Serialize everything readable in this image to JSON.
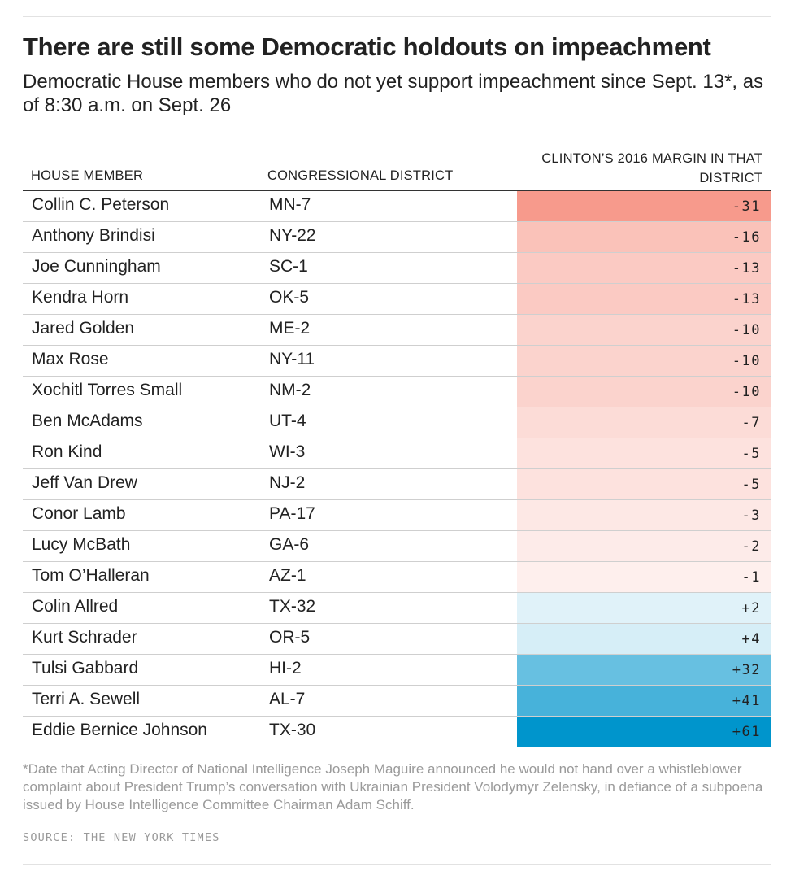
{
  "title": "There are still some Democratic holdouts on impeachment",
  "subtitle": "Democratic House members who do not yet support impeachment since Sept. 13*, as of 8:30 a.m. on Sept. 26",
  "columns": {
    "member": "HOUSE MEMBER",
    "district": "CONGRESSIONAL DISTRICT",
    "margin": "CLINTON’S 2016 MARGIN IN THAT DISTRICT"
  },
  "colors": {
    "negative": "#f79a8c",
    "positive": "#0095cc",
    "text": "#222222",
    "muted": "#9a9a9a"
  },
  "chart_data": {
    "type": "table",
    "title": "There are still some Democratic holdouts on impeachment",
    "rows": [
      {
        "member": "Collin C. Peterson",
        "district": "MN-7",
        "margin": -31,
        "label": "-31"
      },
      {
        "member": "Anthony Brindisi",
        "district": "NY-22",
        "margin": -16,
        "label": "-16"
      },
      {
        "member": "Joe Cunningham",
        "district": "SC-1",
        "margin": -13,
        "label": "-13"
      },
      {
        "member": "Kendra Horn",
        "district": "OK-5",
        "margin": -13,
        "label": "-13"
      },
      {
        "member": "Jared Golden",
        "district": "ME-2",
        "margin": -10,
        "label": "-10"
      },
      {
        "member": "Max Rose",
        "district": "NY-11",
        "margin": -10,
        "label": "-10"
      },
      {
        "member": "Xochitl Torres Small",
        "district": "NM-2",
        "margin": -10,
        "label": "-10"
      },
      {
        "member": "Ben McAdams",
        "district": "UT-4",
        "margin": -7,
        "label": "-7"
      },
      {
        "member": "Ron Kind",
        "district": "WI-3",
        "margin": -5,
        "label": "-5"
      },
      {
        "member": "Jeff Van Drew",
        "district": "NJ-2",
        "margin": -5,
        "label": "-5"
      },
      {
        "member": "Conor Lamb",
        "district": "PA-17",
        "margin": -3,
        "label": "-3"
      },
      {
        "member": "Lucy McBath",
        "district": "GA-6",
        "margin": -2,
        "label": "-2"
      },
      {
        "member": "Tom O’Halleran",
        "district": "AZ-1",
        "margin": -1,
        "label": "-1"
      },
      {
        "member": "Colin Allred",
        "district": "TX-32",
        "margin": 2,
        "label": "+2"
      },
      {
        "member": "Kurt Schrader",
        "district": "OR-5",
        "margin": 4,
        "label": "+4"
      },
      {
        "member": "Tulsi Gabbard",
        "district": "HI-2",
        "margin": 32,
        "label": "+32"
      },
      {
        "member": "Terri A. Sewell",
        "district": "AL-7",
        "margin": 41,
        "label": "+41"
      },
      {
        "member": "Eddie Bernice Johnson",
        "district": "TX-30",
        "margin": 61,
        "label": "+61"
      }
    ]
  },
  "footnote": "*Date that Acting Director of National Intelligence Joseph Maguire announced he would not hand over a whistleblower complaint about President Trump’s conversation with Ukrainian President Volodymyr Zelensky, in defiance of a subpoena issued by House Intelligence Committee Chairman Adam Schiff.",
  "source": "SOURCE: THE NEW YORK TIMES"
}
